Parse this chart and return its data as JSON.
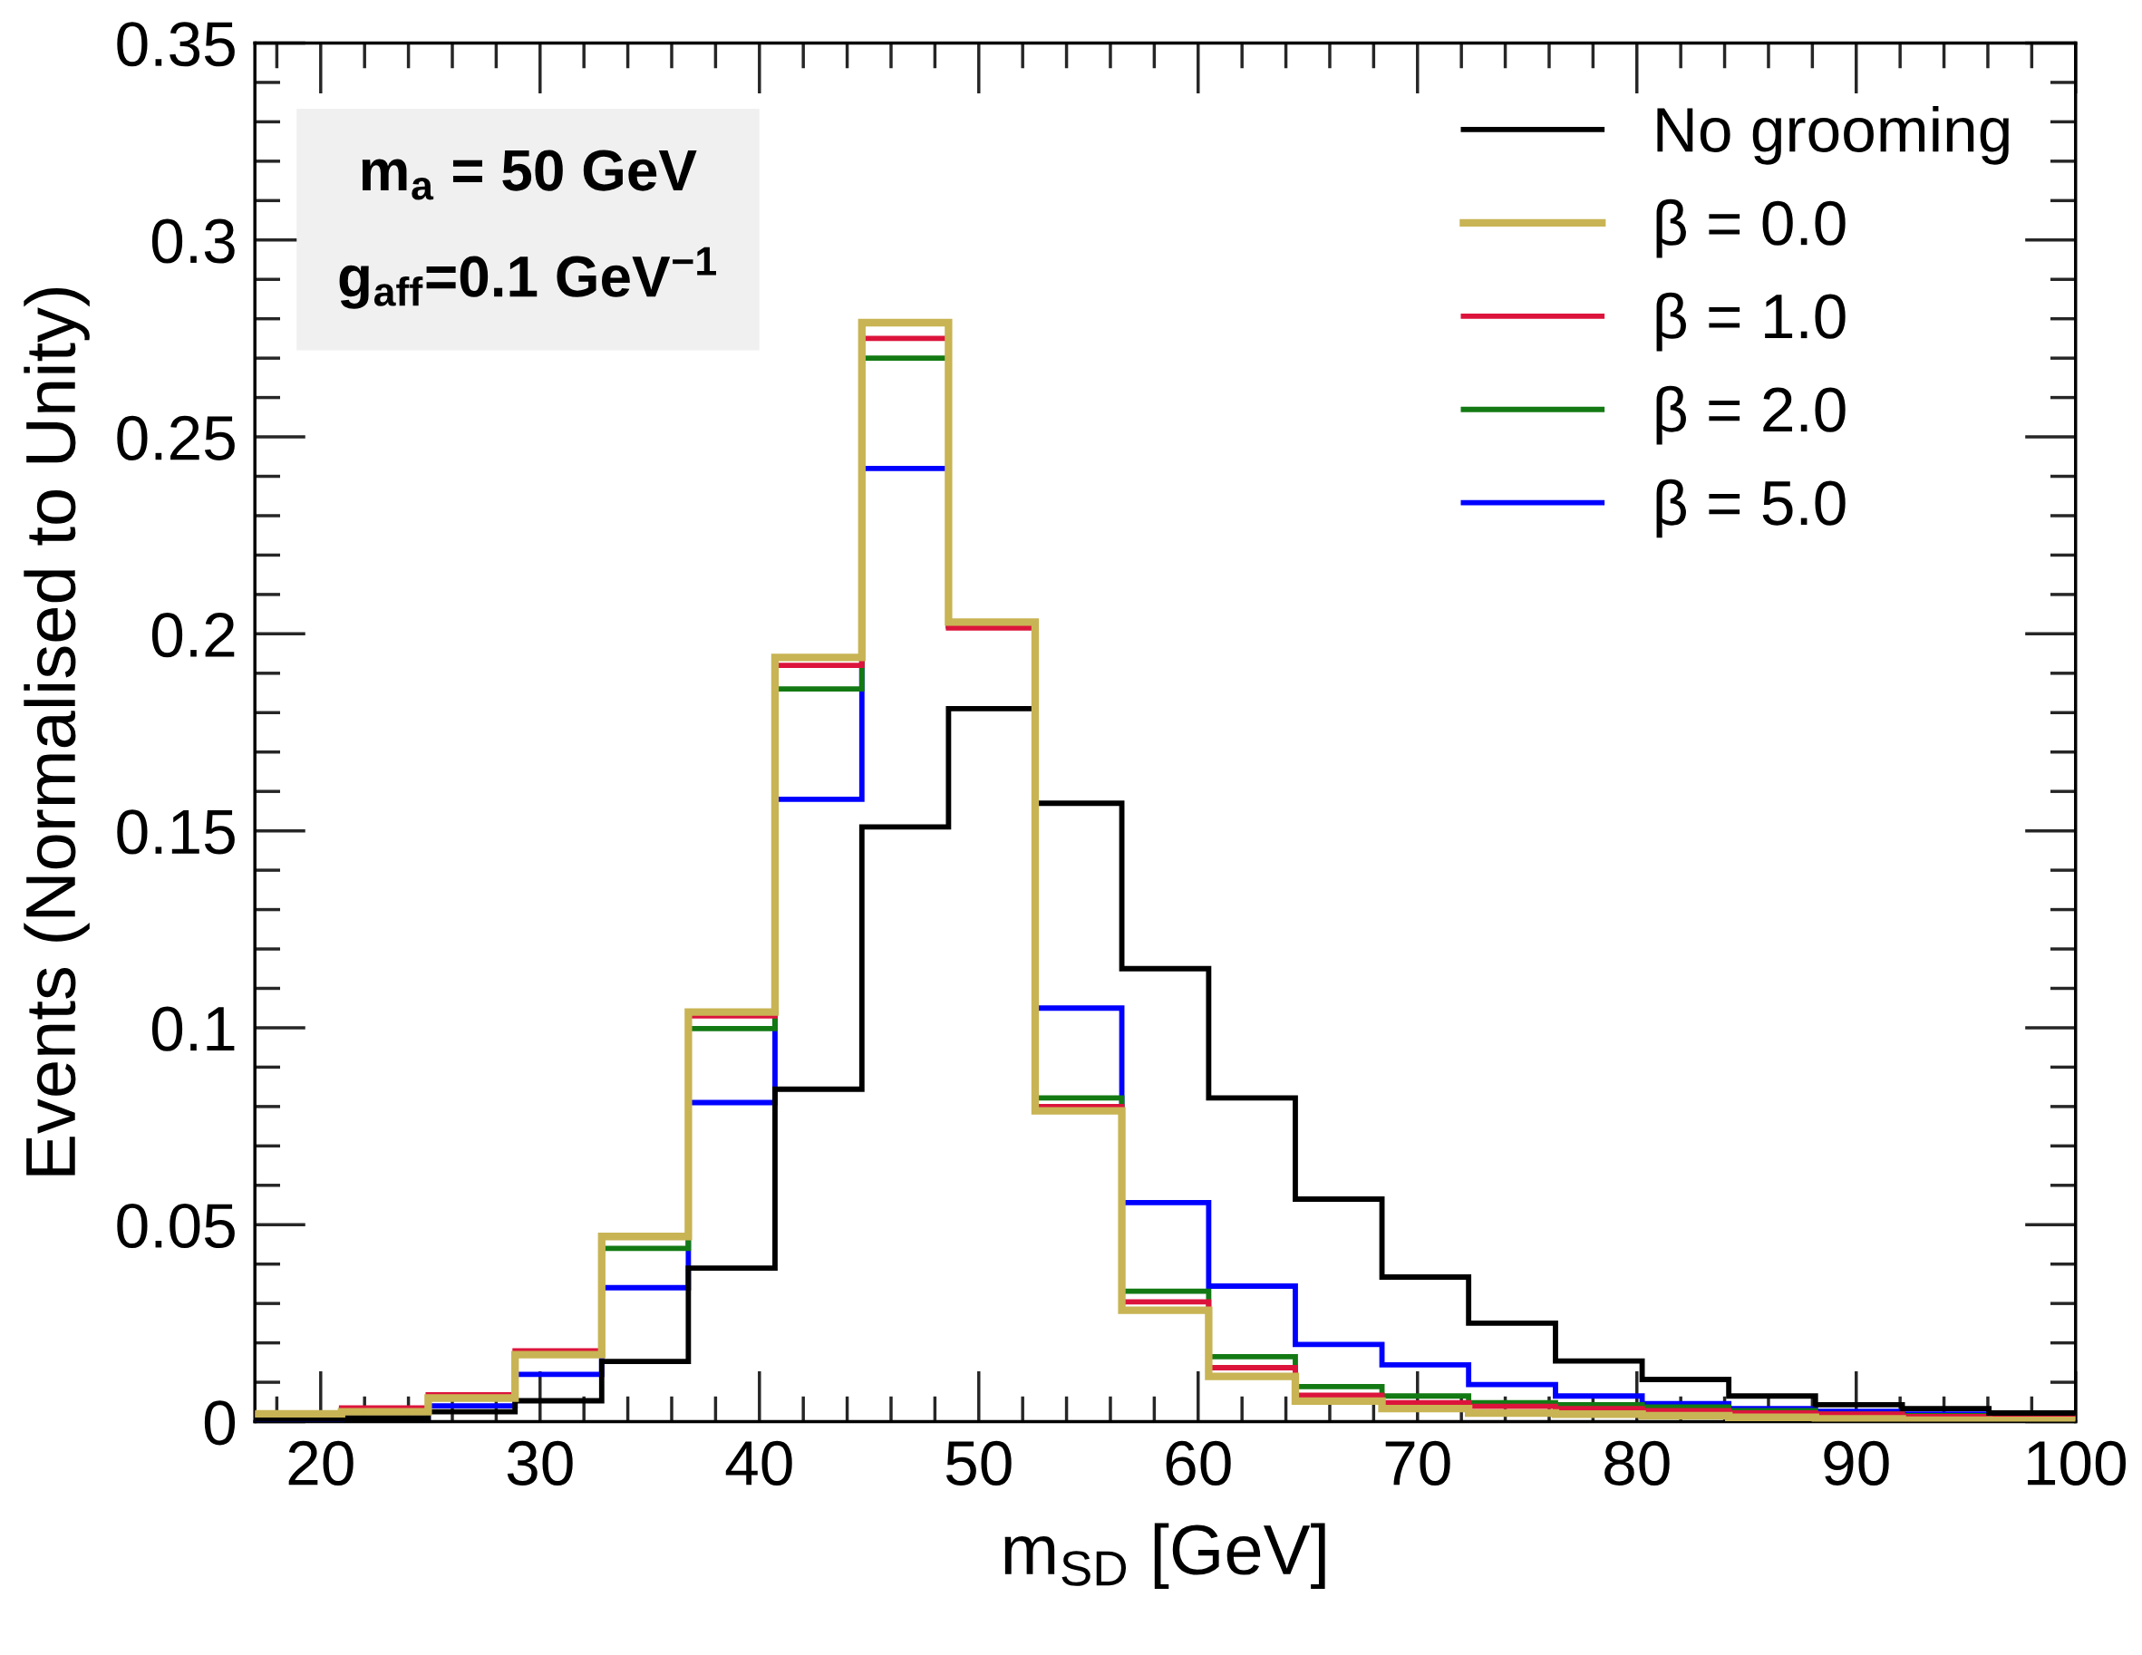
{
  "chart_data": {
    "type": "histogram",
    "xlabel": "m$_{SD}$ [GeV]",
    "ylabel": "Events (Normalised to Unity)",
    "annotations": [
      "m$_{a}$ = 50 GeV",
      "g$_{aff}$=0.1 GeV$^{−1}$"
    ],
    "bins": [
      17,
      20.95,
      24.9,
      28.86,
      32.81,
      36.76,
      40.71,
      44.67,
      48.62,
      52.57,
      56.52,
      60.48,
      64.43,
      68.38,
      72.33,
      76.29,
      80.24,
      84.19,
      88.14,
      92.1,
      96.05,
      100
    ],
    "series": [
      {
        "name": "No grooming",
        "color": "#000000",
        "values": [
          0.0005,
          0.001,
          0.0025,
          0.0053,
          0.0153,
          0.039,
          0.0844,
          0.151,
          0.181,
          0.157,
          0.115,
          0.0822,
          0.0565,
          0.0367,
          0.025,
          0.0154,
          0.0107,
          0.0065,
          0.0043,
          0.0033,
          0.0022
        ]
      },
      {
        "name": "β = 0.0",
        "color": "#c8b454",
        "values": [
          0.002,
          0.0025,
          0.006,
          0.017,
          0.047,
          0.104,
          0.194,
          0.279,
          0.203,
          0.0789,
          0.0283,
          0.0115,
          0.0052,
          0.0033,
          0.0022,
          0.0019,
          0.0015,
          0.0011,
          0.0007,
          0.0004,
          0.0003
        ]
      },
      {
        "name": "β = 1.0",
        "color": "#dc143c",
        "values": [
          0.002,
          0.0035,
          0.0068,
          0.018,
          0.047,
          0.103,
          0.192,
          0.275,
          0.2015,
          0.08,
          0.0304,
          0.0137,
          0.0067,
          0.0048,
          0.0039,
          0.0033,
          0.0028,
          0.0022,
          0.0019,
          0.0013,
          0.001
        ]
      },
      {
        "name": "β = 2.0",
        "color": "#137a13",
        "values": [
          0.0015,
          0.003,
          0.006,
          0.017,
          0.044,
          0.0998,
          0.186,
          0.27,
          0.202,
          0.0822,
          0.0331,
          0.0165,
          0.0089,
          0.0065,
          0.0048,
          0.0043,
          0.0037,
          0.0028,
          0.0019,
          0.0015,
          0.001
        ]
      },
      {
        "name": "β = 5.0",
        "color": "#0000ff",
        "values": [
          0.0005,
          0.001,
          0.004,
          0.012,
          0.034,
          0.081,
          0.158,
          0.242,
          0.202,
          0.105,
          0.0556,
          0.0344,
          0.0196,
          0.0144,
          0.0094,
          0.0065,
          0.0046,
          0.0033,
          0.0026,
          0.0019,
          0.0013
        ]
      }
    ],
    "xlim": [
      17,
      100
    ],
    "xticks": [
      20,
      30,
      40,
      50,
      60,
      70,
      80,
      90,
      100
    ],
    "ylim": [
      0,
      0.35
    ],
    "yticks": [
      0,
      0.05,
      0.1,
      0.15,
      0.2,
      0.25,
      0.3,
      0.35
    ],
    "legend": "top right",
    "grid": false
  }
}
